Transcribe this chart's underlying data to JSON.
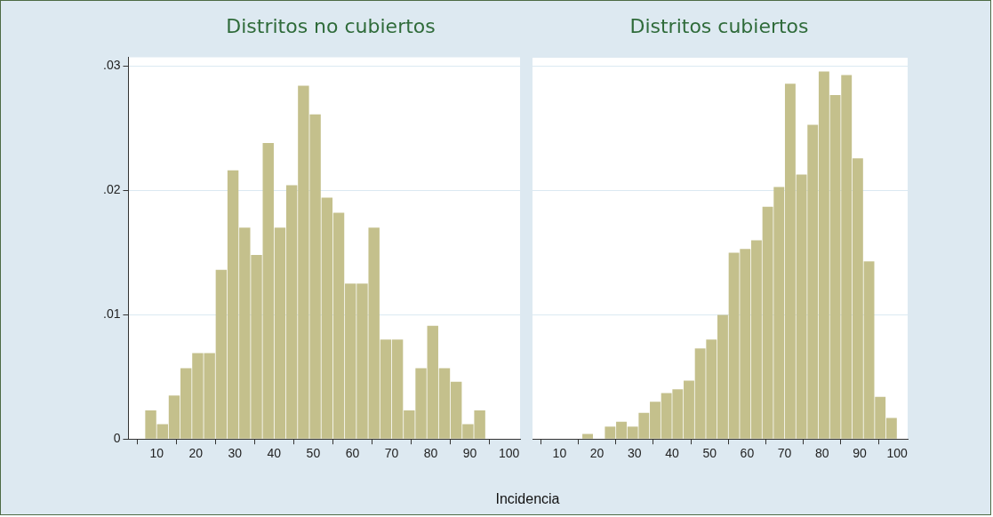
{
  "chart_data": [
    {
      "type": "histogram",
      "title": "Distritos no cubiertos",
      "xlabel": "Incidencia",
      "color": "#c4c08c",
      "bins": [
        7,
        10,
        13,
        16,
        19,
        22,
        25,
        28,
        31,
        34,
        37,
        40,
        43,
        46,
        49,
        52,
        55,
        58,
        61,
        64,
        67,
        70,
        73,
        76,
        79,
        82,
        85,
        88,
        91,
        94
      ],
      "values": [
        0.0023,
        0.0012,
        0.0035,
        0.0057,
        0.0069,
        0.0069,
        0.0136,
        0.0216,
        0.017,
        0.0148,
        0.0238,
        0.017,
        0.0204,
        0.0284,
        0.0261,
        0.0194,
        0.0182,
        0.0125,
        0.0125,
        0.017,
        0.008,
        0.008,
        0.0023,
        0.0057,
        0.0091,
        0.0057,
        0.0046,
        0.0012,
        0.0023
      ],
      "xlim": [
        2.8,
        102.8
      ],
      "xticks": [
        10,
        20,
        30,
        40,
        50,
        60,
        70,
        80,
        90,
        100
      ],
      "ylim": [
        0,
        0.0307
      ],
      "yticks": [
        {
          "value": 0,
          "label": "0"
        },
        {
          "value": 0.01,
          "label": ".01"
        },
        {
          "value": 0.02,
          "label": ".02"
        },
        {
          "value": 0.03,
          "label": ".03"
        }
      ],
      "grid": "y"
    },
    {
      "type": "histogram",
      "title": "Distritos cubiertos",
      "color": "#c4c08c",
      "bins": [
        16,
        19,
        22,
        25,
        28,
        31,
        34,
        37,
        40,
        43,
        46,
        49,
        52,
        55,
        58,
        61,
        64,
        67,
        70,
        73,
        76,
        79,
        82,
        85,
        88,
        91,
        94,
        97,
        100
      ],
      "values": [
        0.0004,
        0,
        0.001,
        0.0014,
        0.001,
        0.0021,
        0.003,
        0.0037,
        0.004,
        0.0047,
        0.0073,
        0.008,
        0.01,
        0.015,
        0.0153,
        0.016,
        0.0187,
        0.0203,
        0.0286,
        0.0213,
        0.0253,
        0.0296,
        0.0277,
        0.0293,
        0.0226,
        0.0143,
        0.0034,
        0.0017
      ],
      "xlim": [
        2.8,
        102.8
      ],
      "xticks": [
        10,
        20,
        30,
        40,
        50,
        60,
        70,
        80,
        90,
        100
      ],
      "ylim": [
        0,
        0.0307
      ],
      "yticks": [
        {
          "value": 0,
          "label": null
        },
        {
          "value": 0.01,
          "label": null
        },
        {
          "value": 0.02,
          "label": null
        },
        {
          "value": 0.03,
          "label": null
        }
      ],
      "grid": "y",
      "tick_labels": "x"
    }
  ]
}
